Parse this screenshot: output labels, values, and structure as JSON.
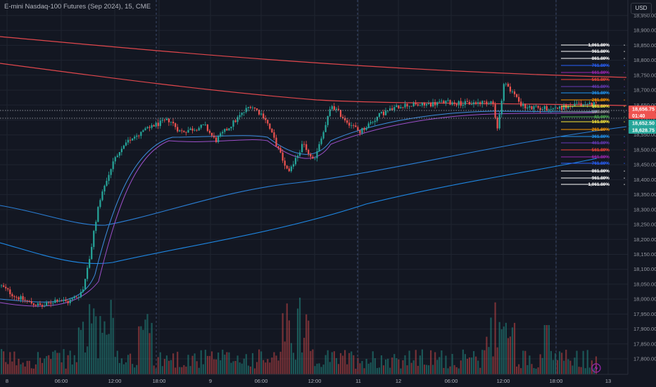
{
  "header": {
    "title": "E-mini Nasdaq-100 Futures (Sep 2024), 15, CME",
    "currency": "USD"
  },
  "price_axis": {
    "ticks": [
      "18,950.00",
      "18,900.00",
      "18,850.00",
      "18,800.00",
      "18,750.00",
      "18,700.00",
      "18,650.00",
      "18,600.00",
      "18,550.00",
      "18,500.00",
      "18,450.00",
      "18,400.00",
      "18,350.00",
      "18,300.00",
      "18,250.00",
      "18,200.00",
      "18,150.00",
      "18,100.00",
      "18,050.00",
      "18,000.00",
      "17,950.00",
      "17,900.00",
      "17,850.00",
      "17,800.00"
    ]
  },
  "time_axis": {
    "labels": [
      "8",
      "06:00",
      "12:00",
      "18:00",
      "9",
      "06:00",
      "12:00",
      "11",
      "12",
      "06:00",
      "12:00",
      "18:00",
      "13"
    ]
  },
  "price_tags": {
    "last": "18,656.75",
    "countdown": "01:40",
    "level_a": "18,652.50",
    "level_b": "18,628.75"
  },
  "fib_levels": [
    {
      "label": "1,061.80%",
      "color": "#ffffff"
    },
    {
      "label": "961.80%",
      "color": "#ffffff"
    },
    {
      "label": "861.80%",
      "color": "#ffffff"
    },
    {
      "label": "761.80%",
      "color": "#2962ff"
    },
    {
      "label": "661.80%",
      "color": "#9c27b0"
    },
    {
      "label": "561.80%",
      "color": "#f44336"
    },
    {
      "label": "461.80%",
      "color": "#673ab7"
    },
    {
      "label": "361.80%",
      "color": "#2196f3"
    },
    {
      "label": "261.80%",
      "color": "#ff9800"
    },
    {
      "label": "161.80%",
      "color": "#ffeb3b"
    },
    {
      "label": "100.00%",
      "color": "#9e9e9e"
    },
    {
      "label": "61.80%",
      "color": "#4caf50"
    },
    {
      "label": "161.80%",
      "color": "#ffeb3b"
    },
    {
      "label": "261.80%",
      "color": "#ff9800"
    },
    {
      "label": "361.80%",
      "color": "#2196f3"
    },
    {
      "label": "461.80%",
      "color": "#673ab7"
    },
    {
      "label": "561.80%",
      "color": "#f44336"
    },
    {
      "label": "661.80%",
      "color": "#9c27b0"
    },
    {
      "label": "761.80%",
      "color": "#2962ff"
    },
    {
      "label": "861.80%",
      "color": "#ffffff"
    },
    {
      "label": "961.80%",
      "color": "#ffffff"
    },
    {
      "label": "1,061.80%",
      "color": "#ffffff"
    }
  ],
  "colors": {
    "background": "#131722",
    "up": "#26a69a",
    "down": "#ef5350",
    "ma_red": "#e0474c",
    "ma_blue": "#2a7fd6",
    "ma_blue2": "#1e88e5",
    "ma_purple": "#9c4fc9",
    "ma_blue_short": "#3d8ee0",
    "grid": "#1f2430",
    "last_tag": "#ef5350",
    "green_tag": "#26a69a"
  },
  "icons": {
    "replay": "lightning-icon"
  }
}
